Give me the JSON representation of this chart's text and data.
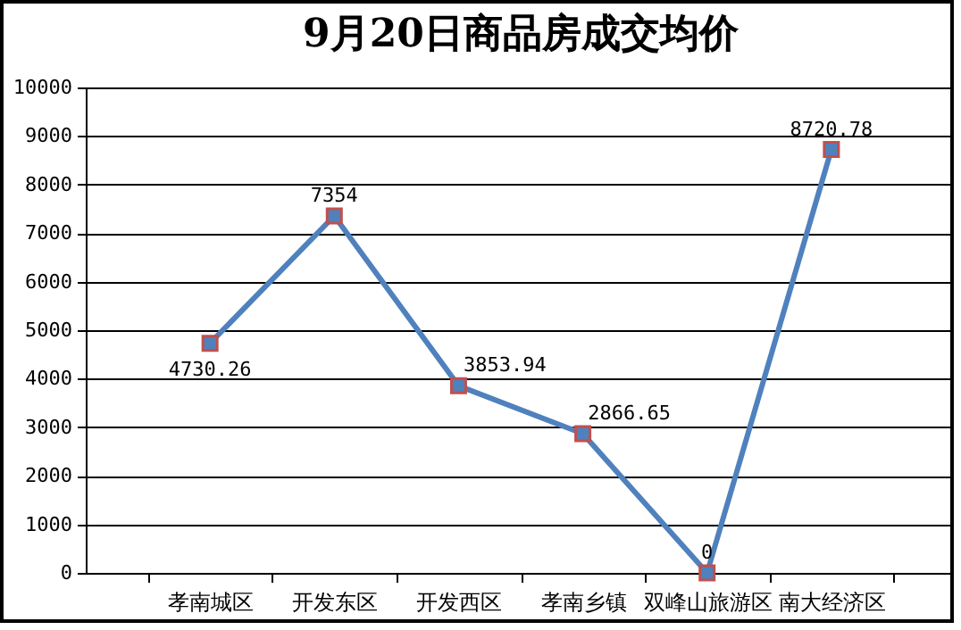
{
  "chart_data": {
    "type": "line",
    "title": "9月20日商品房成交均价",
    "categories": [
      "孝南城区",
      "开发东区",
      "开发西区",
      "孝南乡镇",
      "双峰山旅游区",
      "南大经济区"
    ],
    "series": [
      {
        "color": "#4f81bd",
        "values": [
          4730.26,
          7354,
          3853.94,
          2866.65,
          0,
          8720.78
        ]
      }
    ],
    "ylim": [
      0,
      10000
    ],
    "yticks": [
      0,
      1000,
      2000,
      3000,
      4000,
      5000,
      6000,
      7000,
      8000,
      9000,
      10000
    ],
    "grid": "y",
    "marker": "square",
    "line_style": "solid",
    "data_labels": true,
    "legend": false
  }
}
